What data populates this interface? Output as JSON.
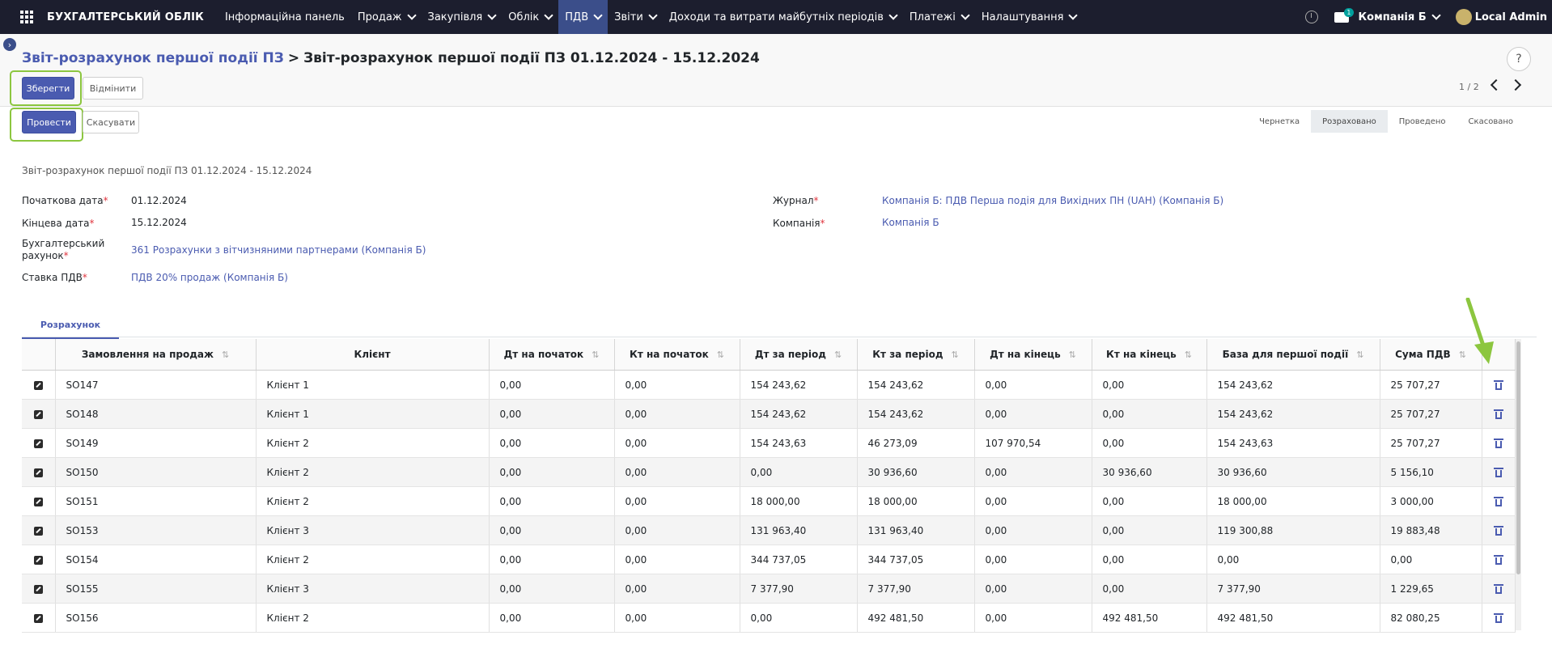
{
  "topbar": {
    "app_name": "БУХГАЛТЕРСЬКИЙ ОБЛІК",
    "menu": [
      {
        "label": "Інформаційна панель",
        "dropdown": false,
        "active": false
      },
      {
        "label": "Продаж",
        "dropdown": true,
        "active": false
      },
      {
        "label": "Закупівля",
        "dropdown": true,
        "active": false
      },
      {
        "label": "Облік",
        "dropdown": true,
        "active": false
      },
      {
        "label": "ПДВ",
        "dropdown": true,
        "active": true
      },
      {
        "label": "Звіти",
        "dropdown": true,
        "active": false
      },
      {
        "label": "Доходи та витрати майбутніх періодів",
        "dropdown": true,
        "active": false
      },
      {
        "label": "Платежі",
        "dropdown": true,
        "active": false
      },
      {
        "label": "Налаштування",
        "dropdown": true,
        "active": false
      }
    ],
    "messages_badge": "1",
    "company": "Компанія Б",
    "user": "Local Admin"
  },
  "breadcrumb": {
    "parent": "Звіт-розрахунок першої події ПЗ",
    "separator": ">",
    "current": "Звіт-розрахунок першої події ПЗ 01.12.2024 - 15.12.2024"
  },
  "actions": {
    "save": "Зберегти",
    "discard": "Відмінити",
    "post": "Провести",
    "cancel": "Скасувати"
  },
  "pager": {
    "text": "1 / 2"
  },
  "statusbar": {
    "stages": [
      "Чернетка",
      "Розраховано",
      "Проведено",
      "Скасовано"
    ],
    "active": "Розраховано"
  },
  "form": {
    "title": "Звіт-розрахунок першої події ПЗ 01.12.2024 - 15.12.2024",
    "date_start_label": "Початкова дата",
    "date_start": "01.12.2024",
    "date_end_label": "Кінцева дата",
    "date_end": "15.12.2024",
    "account_label_1": "Бухгалтерський",
    "account_label_2": "рахунок",
    "account": "361 Розрахунки з вітчизняними партнерами (Компанія Б)",
    "tax_label": "Ставка ПДВ",
    "tax": "ПДВ 20% продаж (Компанія Б)",
    "journal_label": "Журнал",
    "journal": "Компанія Б: ПДВ Перша подія для Вихідних ПН (UAH) (Компанія Б)",
    "company_label": "Компанія",
    "company": "Компанія Б",
    "required_mark": "*"
  },
  "tabs": {
    "calc": "Розрахунок"
  },
  "table": {
    "headers": [
      "Замовлення на продаж",
      "Клієнт",
      "Дт на початок",
      "Кт на початок",
      "Дт за період",
      "Кт за період",
      "Дт на кінець",
      "Кт на кінець",
      "База для першої події",
      "Сума ПДВ"
    ],
    "sortable": [
      true,
      false,
      true,
      true,
      true,
      true,
      true,
      true,
      true,
      true
    ],
    "rows": [
      [
        "SO147",
        "Клієнт 1",
        "0,00",
        "0,00",
        "154 243,62",
        "154 243,62",
        "0,00",
        "0,00",
        "154 243,62",
        "25 707,27"
      ],
      [
        "SO148",
        "Клієнт 1",
        "0,00",
        "0,00",
        "154 243,62",
        "154 243,62",
        "0,00",
        "0,00",
        "154 243,62",
        "25 707,27"
      ],
      [
        "SO149",
        "Клієнт 2",
        "0,00",
        "0,00",
        "154 243,63",
        "46 273,09",
        "107 970,54",
        "0,00",
        "154 243,63",
        "25 707,27"
      ],
      [
        "SO150",
        "Клієнт 2",
        "0,00",
        "0,00",
        "0,00",
        "30 936,60",
        "0,00",
        "30 936,60",
        "30 936,60",
        "5 156,10"
      ],
      [
        "SO151",
        "Клієнт 2",
        "0,00",
        "0,00",
        "18 000,00",
        "18 000,00",
        "0,00",
        "0,00",
        "18 000,00",
        "3 000,00"
      ],
      [
        "SO153",
        "Клієнт 3",
        "0,00",
        "0,00",
        "131 963,40",
        "131 963,40",
        "0,00",
        "0,00",
        "119 300,88",
        "19 883,48"
      ],
      [
        "SO154",
        "Клієнт 2",
        "0,00",
        "0,00",
        "344 737,05",
        "344 737,05",
        "0,00",
        "0,00",
        "0,00",
        "0,00"
      ],
      [
        "SO155",
        "Клієнт 3",
        "0,00",
        "0,00",
        "7 377,90",
        "7 377,90",
        "0,00",
        "0,00",
        "7 377,90",
        "1 229,65"
      ],
      [
        "SO156",
        "Клієнт 2",
        "0,00",
        "0,00",
        "0,00",
        "492 481,50",
        "0,00",
        "492 481,50",
        "492 481,50",
        "82 080,25"
      ]
    ]
  },
  "colors": {
    "topbar": "#1c1e2e",
    "primary": "#4a5bb0",
    "highlight": "#8cc63f",
    "link": "#4a5bb0",
    "required": "#e0363f"
  }
}
